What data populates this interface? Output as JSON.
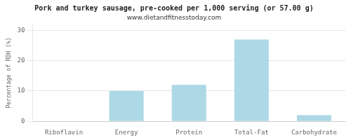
{
  "chart_data": {
    "type": "bar",
    "title": "Pork and turkey sausage, pre-cooked per 1,000 serving (or 57.00 g)",
    "subtitle": "www.dietandfitnesstoday.com",
    "categories": [
      "Riboflavin",
      "Energy",
      "Protein",
      "Total-Fat",
      "Carbohydrate"
    ],
    "values": [
      0,
      10,
      12,
      27,
      2
    ],
    "color": "#add8e6",
    "ylabel": "Percentage of RDH (%)",
    "ylim": [
      0,
      32
    ],
    "yticks": [
      0,
      10,
      20,
      30
    ],
    "grid": true
  }
}
